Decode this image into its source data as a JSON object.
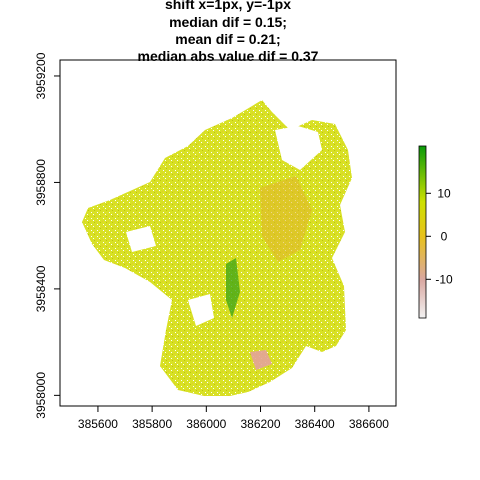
{
  "chart_data": {
    "type": "heatmap",
    "title_lines": [
      "shift x=1px, y=-1px",
      "median dif = 0.15;",
      "mean dif = 0.21;",
      "median abs value dif = 0.37"
    ],
    "xlabel": "",
    "ylabel": "",
    "xlim": [
      385460,
      386700
    ],
    "ylim": [
      3957960,
      3959260
    ],
    "x_ticks": [
      385600,
      385800,
      386000,
      386200,
      386400,
      386600
    ],
    "y_ticks": [
      3958000,
      3958400,
      3958800,
      3959200
    ],
    "legend": {
      "position": "right",
      "range": [
        -19,
        21
      ],
      "ticks": [
        -10,
        0,
        10
      ],
      "colors": [
        {
          "value": -19,
          "color": "#f2f2f2"
        },
        {
          "value": -10,
          "color": "#d9a7a0"
        },
        {
          "value": 0,
          "color": "#e8c21c"
        },
        {
          "value": 8,
          "color": "#cde000"
        },
        {
          "value": 21,
          "color": "#0a9a0a"
        }
      ]
    },
    "approx_region_values": [
      {
        "name": "bulk",
        "value": 1
      },
      {
        "name": "central-ridge",
        "value": 12
      },
      {
        "name": "southeast-patch",
        "value": -12
      },
      {
        "name": "eastern-slopes",
        "value": -2
      }
    ]
  }
}
